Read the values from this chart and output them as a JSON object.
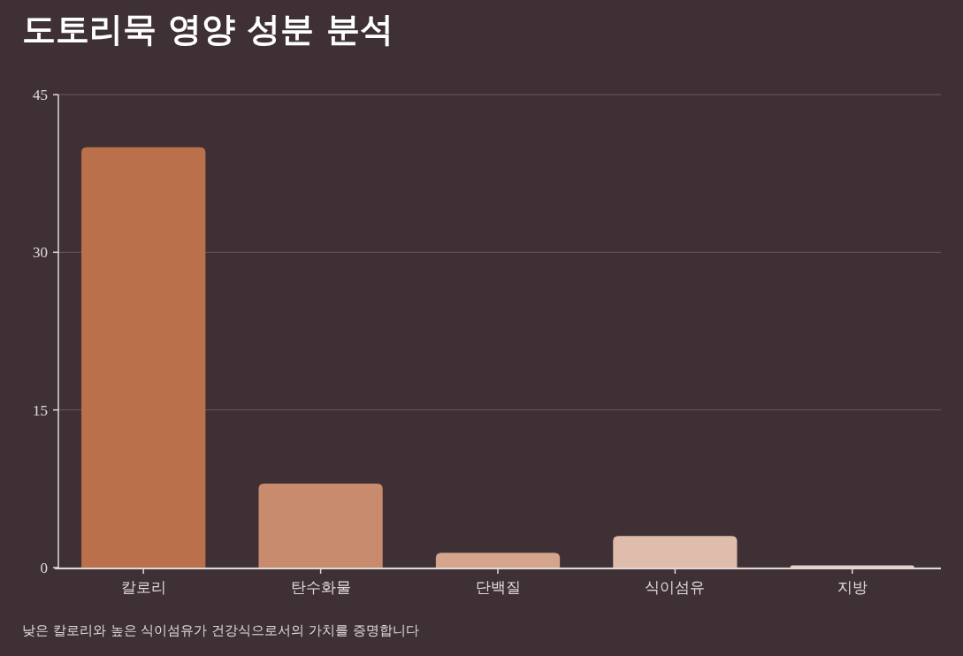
{
  "chart_data": {
    "type": "bar",
    "title": "도토리묵 영양 성분 분석",
    "categories": [
      "칼로리",
      "탄수화물",
      "단백질",
      "식이섬유",
      "지방"
    ],
    "values": [
      40,
      8,
      1.4,
      3,
      0.2
    ],
    "colors": [
      "#bb704c",
      "#c98b6e",
      "#d4a58a",
      "#e0bcac",
      "#e6d0c6"
    ],
    "ylim": [
      0,
      45
    ],
    "yticks": [
      0,
      15,
      30,
      45
    ],
    "grid": "y",
    "annotations": [
      "낮은 칼로리와 높은 식이섬유가 건강식으로서의 가치를 증명합니다"
    ]
  }
}
